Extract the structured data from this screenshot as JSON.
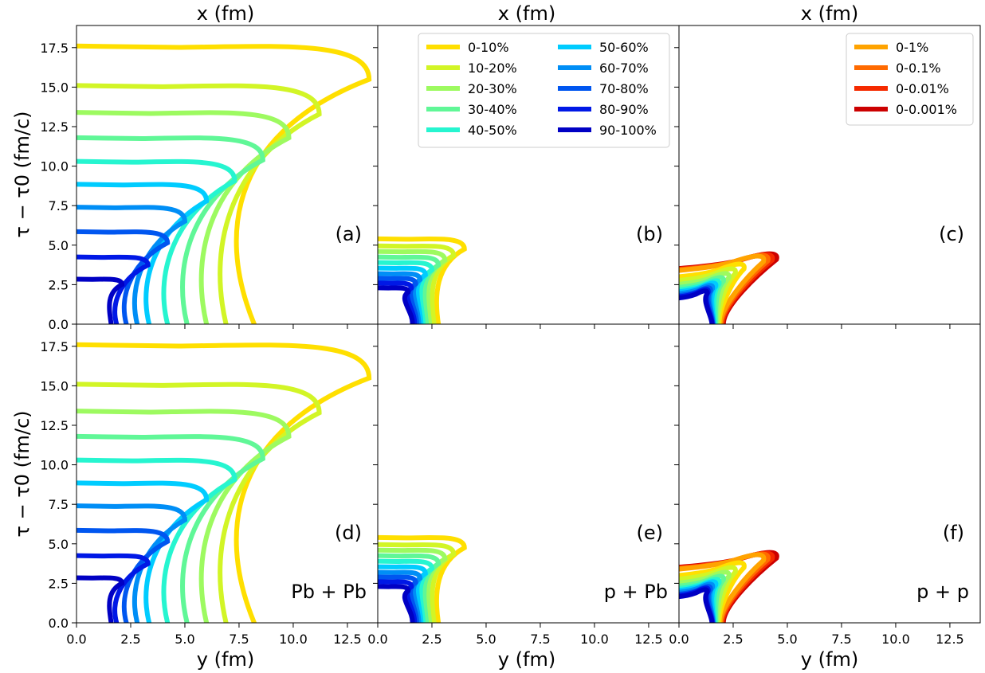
{
  "top_axis_label": "x (fm)",
  "bottom_axis_label": "y (fm)",
  "y_axis_label": "τ − τ0 (fm/c)",
  "chart_data": {
    "type": "line",
    "layout": "2 rows x 3 columns, shared axes",
    "x_ticks": [
      "0.0",
      "2.5",
      "5.0",
      "7.5",
      "10.0",
      "12.5"
    ],
    "y_ticks": [
      "0.0",
      "2.5",
      "5.0",
      "7.5",
      "10.0",
      "12.5",
      "15.0",
      "17.5"
    ],
    "xlim": [
      0,
      13.9
    ],
    "ylim": [
      0,
      18.9
    ],
    "grid": false,
    "legend_b": {
      "placement": "top-right of panel (b), 2 columns",
      "entries": [
        {
          "label": "0-10%",
          "color": "#ffdf00"
        },
        {
          "label": "10-20%",
          "color": "#d2f526"
        },
        {
          "label": "20-30%",
          "color": "#9dfa60"
        },
        {
          "label": "30-40%",
          "color": "#60f797"
        },
        {
          "label": "40-50%",
          "color": "#26f5d0"
        },
        {
          "label": "50-60%",
          "color": "#00ccff"
        },
        {
          "label": "60-70%",
          "color": "#008ef6"
        },
        {
          "label": "70-80%",
          "color": "#0056f0"
        },
        {
          "label": "80-90%",
          "color": "#0018e6"
        },
        {
          "label": "90-100%",
          "color": "#0000c4"
        }
      ]
    },
    "legend_c": {
      "placement": "top-right of panel (c)",
      "entries": [
        {
          "label": "0-1%",
          "color": "#ffa300"
        },
        {
          "label": "0-0.1%",
          "color": "#ff6a00"
        },
        {
          "label": "0-0.01%",
          "color": "#f52a00"
        },
        {
          "label": "0-0.001%",
          "color": "#cc0000"
        }
      ]
    },
    "systems": {
      "pbpb": {
        "label": "Pb + Pb",
        "h": [
          17.6,
          15.1,
          13.4,
          11.8,
          10.3,
          8.85,
          7.4,
          5.85,
          4.25,
          2.85
        ],
        "x_base": [
          8.2,
          6.9,
          6.0,
          5.1,
          4.2,
          3.35,
          2.8,
          2.3,
          1.85,
          1.6
        ],
        "x_max": [
          13.5,
          11.2,
          9.8,
          8.6,
          7.3,
          6.0,
          5.0,
          4.2,
          3.3,
          2.1
        ]
      },
      "ppb": {
        "label": "p + Pb",
        "h": [
          5.4,
          4.95,
          4.6,
          4.25,
          3.9,
          3.55,
          3.2,
          2.9,
          2.6,
          2.3
        ],
        "x_base": [
          2.8,
          2.6,
          2.4,
          2.25,
          2.1,
          2.0,
          1.9,
          1.8,
          1.7,
          1.6
        ],
        "x_max": [
          4.0,
          3.5,
          3.1,
          2.8,
          2.5,
          2.2,
          1.95,
          1.75,
          1.55,
          1.4
        ]
      },
      "pp": {
        "label": "p + p",
        "h": [
          3.8,
          3.5,
          3.2,
          2.95,
          2.75,
          2.6,
          2.45,
          2.3,
          2.2,
          2.1
        ],
        "x_base": [
          1.85,
          1.8,
          1.75,
          1.7,
          1.65,
          1.6,
          1.58,
          1.56,
          1.54,
          1.52
        ],
        "x_max": [
          3.0,
          2.6,
          2.3,
          2.05,
          1.85,
          1.7,
          1.55,
          1.45,
          1.35,
          1.3
        ],
        "ultra_h": [
          4.3,
          4.35,
          4.4,
          4.45
        ],
        "ultra_x_max": [
          3.9,
          4.1,
          4.3,
          4.5
        ],
        "ultra_x_base": [
          1.9,
          1.95,
          2.0,
          2.05
        ]
      }
    },
    "panels": [
      {
        "id": "a",
        "label": "(a)",
        "system": "pbpb",
        "subsets": "centrality"
      },
      {
        "id": "b",
        "label": "(b)",
        "system": "ppb",
        "subsets": "centrality"
      },
      {
        "id": "c",
        "label": "(c)",
        "system": "pp",
        "subsets": "centrality+ultra"
      },
      {
        "id": "d",
        "label": "(d)",
        "system": "pbpb",
        "subsets": "centrality",
        "system_label": "Pb + Pb"
      },
      {
        "id": "e",
        "label": "(e)",
        "system": "ppb",
        "subsets": "centrality",
        "system_label": "p + Pb"
      },
      {
        "id": "f",
        "label": "(f)",
        "system": "pp",
        "subsets": "centrality+ultra",
        "system_label": "p + p"
      }
    ]
  }
}
